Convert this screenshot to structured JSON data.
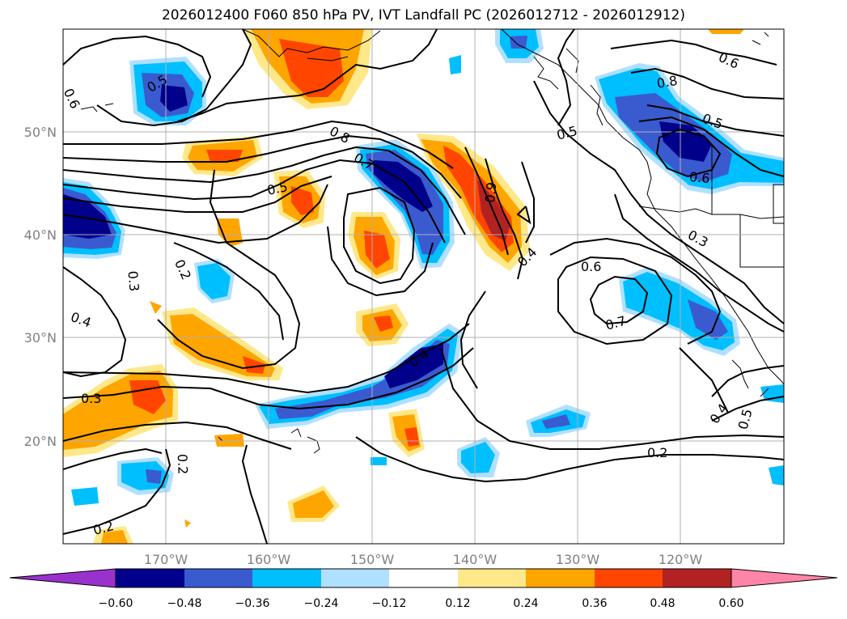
{
  "title": "2026012400 F060 850 hPa PV, IVT Landfall PC (2026012712 - 2026012912)",
  "map": {
    "lon_range": [
      -180,
      -110
    ],
    "lat_range": [
      10,
      60
    ],
    "lon_ticks": [
      {
        "value": -170,
        "label": "170°W"
      },
      {
        "value": -160,
        "label": "160°W"
      },
      {
        "value": -150,
        "label": "150°W"
      },
      {
        "value": -140,
        "label": "140°W"
      },
      {
        "value": -130,
        "label": "130°W"
      },
      {
        "value": -120,
        "label": "120°W"
      }
    ],
    "lat_ticks": [
      {
        "value": 20,
        "label": "20°N"
      },
      {
        "value": 30,
        "label": "30°N"
      },
      {
        "value": 40,
        "label": "40°N"
      },
      {
        "value": 50,
        "label": "50°N"
      }
    ],
    "gridlines": true,
    "contour_labels": [
      "0.5",
      "0.6",
      "0.8",
      "0.7",
      "0.5",
      "0.9",
      "0.4",
      "0.6",
      "0.3",
      "0.7",
      "0.5",
      "0.6",
      "0.2",
      "0.3",
      "0.4",
      "0.3",
      "0.4",
      "0.2",
      "0.2",
      "0.2",
      "0.4",
      "0.5",
      "0.6",
      "0.8",
      "0.5"
    ]
  },
  "colorbar": {
    "colors": [
      "#9932cc",
      "#00008b",
      "#3a5bd0",
      "#00bfff",
      "#b0e0ff",
      "#ffffff",
      "#ffe88a",
      "#ffa500",
      "#ff4500",
      "#b22222",
      "#ff85a8"
    ],
    "tick_labels": [
      "−0.60",
      "−0.48",
      "−0.36",
      "−0.24",
      "−0.12",
      "0.12",
      "0.24",
      "0.36",
      "0.48",
      "0.60"
    ]
  }
}
